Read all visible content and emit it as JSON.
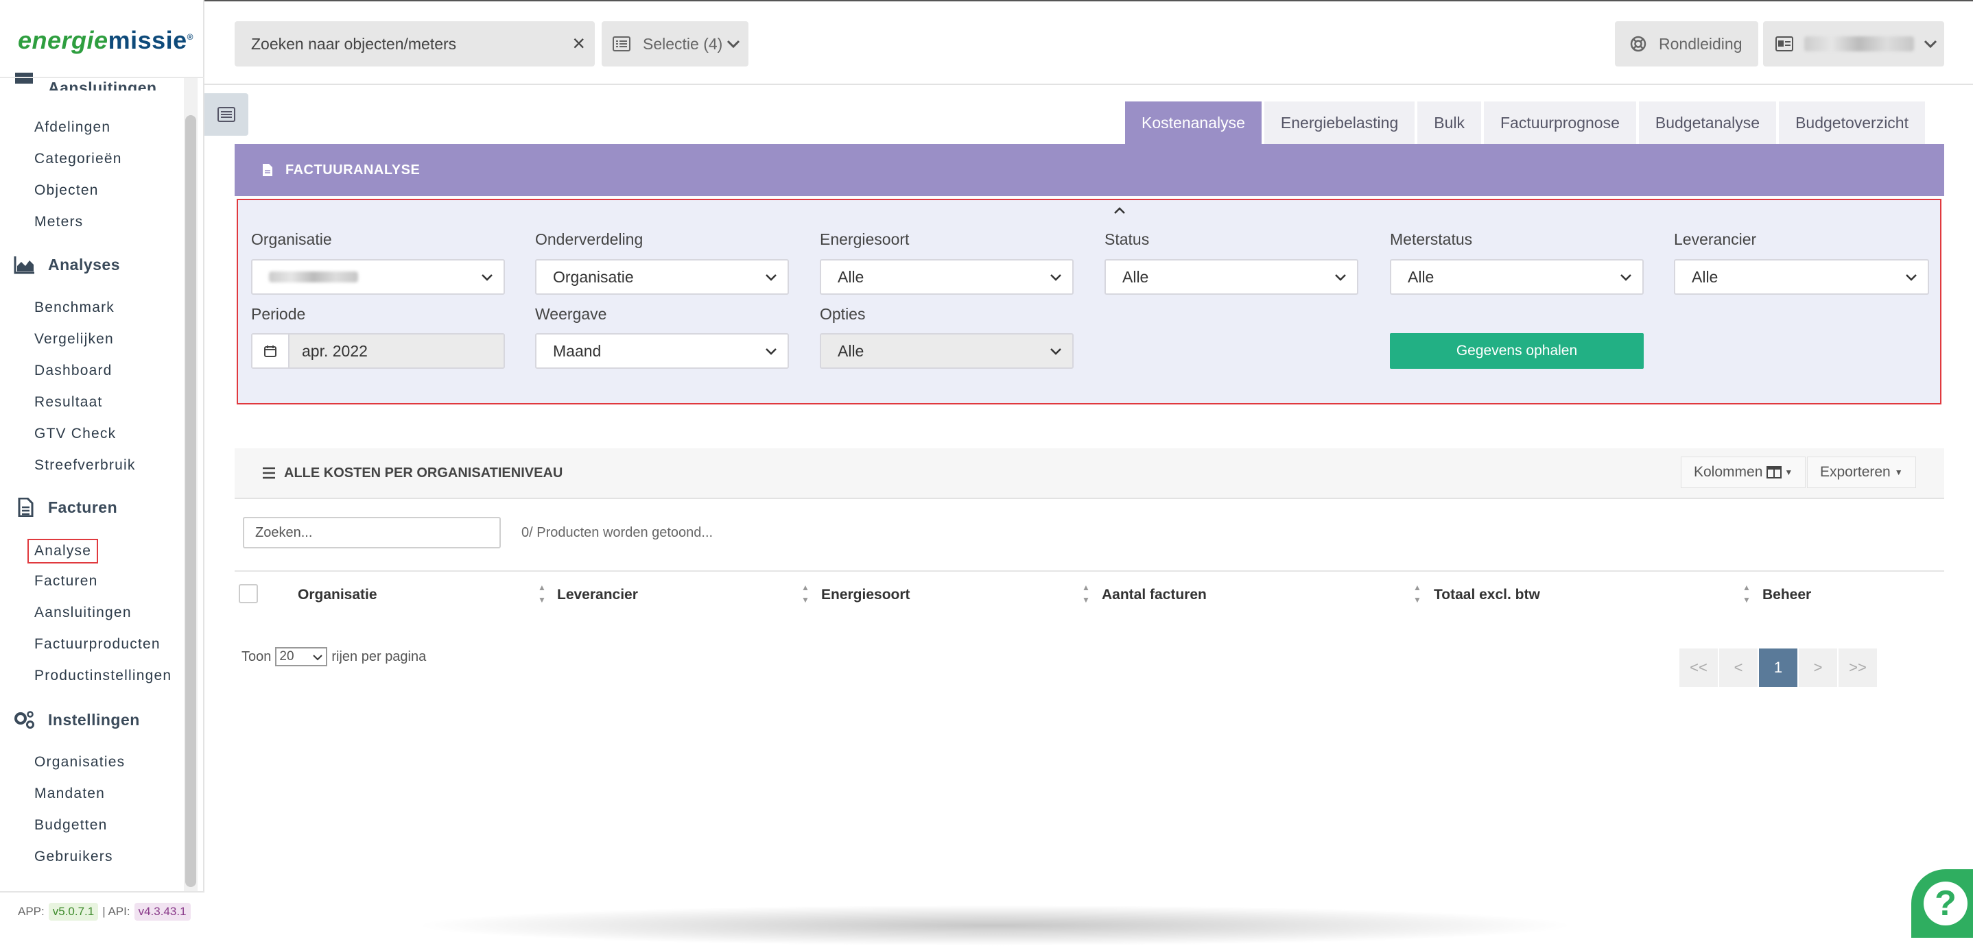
{
  "brand": {
    "part1": "energie",
    "part2": "missie",
    "reg": "®"
  },
  "sidebar": {
    "cut_section": "Aansluitingen",
    "groups": [
      {
        "items": [
          "Afdelingen",
          "Categorieën",
          "Objecten",
          "Meters"
        ]
      },
      {
        "title": "Analyses",
        "items": [
          "Benchmark",
          "Vergelijken",
          "Dashboard",
          "Resultaat",
          "GTV Check",
          "Streefverbruik"
        ]
      },
      {
        "title": "Facturen",
        "items": [
          "Analyse",
          "Facturen",
          "Aansluitingen",
          "Factuurproducten",
          "Productinstellingen"
        ]
      },
      {
        "title": "Instellingen",
        "items": [
          "Organisaties",
          "Mandaten",
          "Budgetten",
          "Gebruikers"
        ]
      }
    ],
    "version": {
      "app_label": "APP:",
      "app": "v5.0.7.1",
      "sep": "| API:",
      "api": "v4.3.43.1"
    }
  },
  "header": {
    "search_value": "Zoeken naar objecten/meters",
    "selectie": "Selectie (4)",
    "rondleiding": "Rondleiding"
  },
  "tabs": [
    "Kostenanalyse",
    "Energiebelasting",
    "Bulk",
    "Factuurprognose",
    "Budgetanalyse",
    "Budgetoverzicht"
  ],
  "panel_title": "FACTUURANALYSE",
  "filters": {
    "organisatie": {
      "label": "Organisatie"
    },
    "onderverdeling": {
      "label": "Onderverdeling",
      "value": "Organisatie"
    },
    "energiesoort": {
      "label": "Energiesoort",
      "value": "Alle"
    },
    "status": {
      "label": "Status",
      "value": "Alle"
    },
    "meterstatus": {
      "label": "Meterstatus",
      "value": "Alle"
    },
    "leverancier": {
      "label": "Leverancier",
      "value": "Alle"
    },
    "periode": {
      "label": "Periode",
      "value": "apr. 2022"
    },
    "weergave": {
      "label": "Weergave",
      "value": "Maand"
    },
    "opties": {
      "label": "Opties",
      "value": "Alle"
    },
    "fetch_button": "Gegevens ophalen"
  },
  "table": {
    "title": "ALLE KOSTEN PER ORGANISATIENIVEAU",
    "kolommen": "Kolommen",
    "exporteren": "Exporteren",
    "search_placeholder": "Zoeken...",
    "count_text": "0/ Producten worden getoond...",
    "columns": [
      "Organisatie",
      "Leverancier",
      "Energiesoort",
      "Aantal facturen",
      "Totaal excl. btw",
      "Beheer"
    ],
    "toon": "Toon",
    "page_size": "20",
    "per_page": "rijen per pagina",
    "pager": [
      "<<",
      "<",
      "1",
      ">",
      ">>"
    ]
  },
  "help": "?"
}
